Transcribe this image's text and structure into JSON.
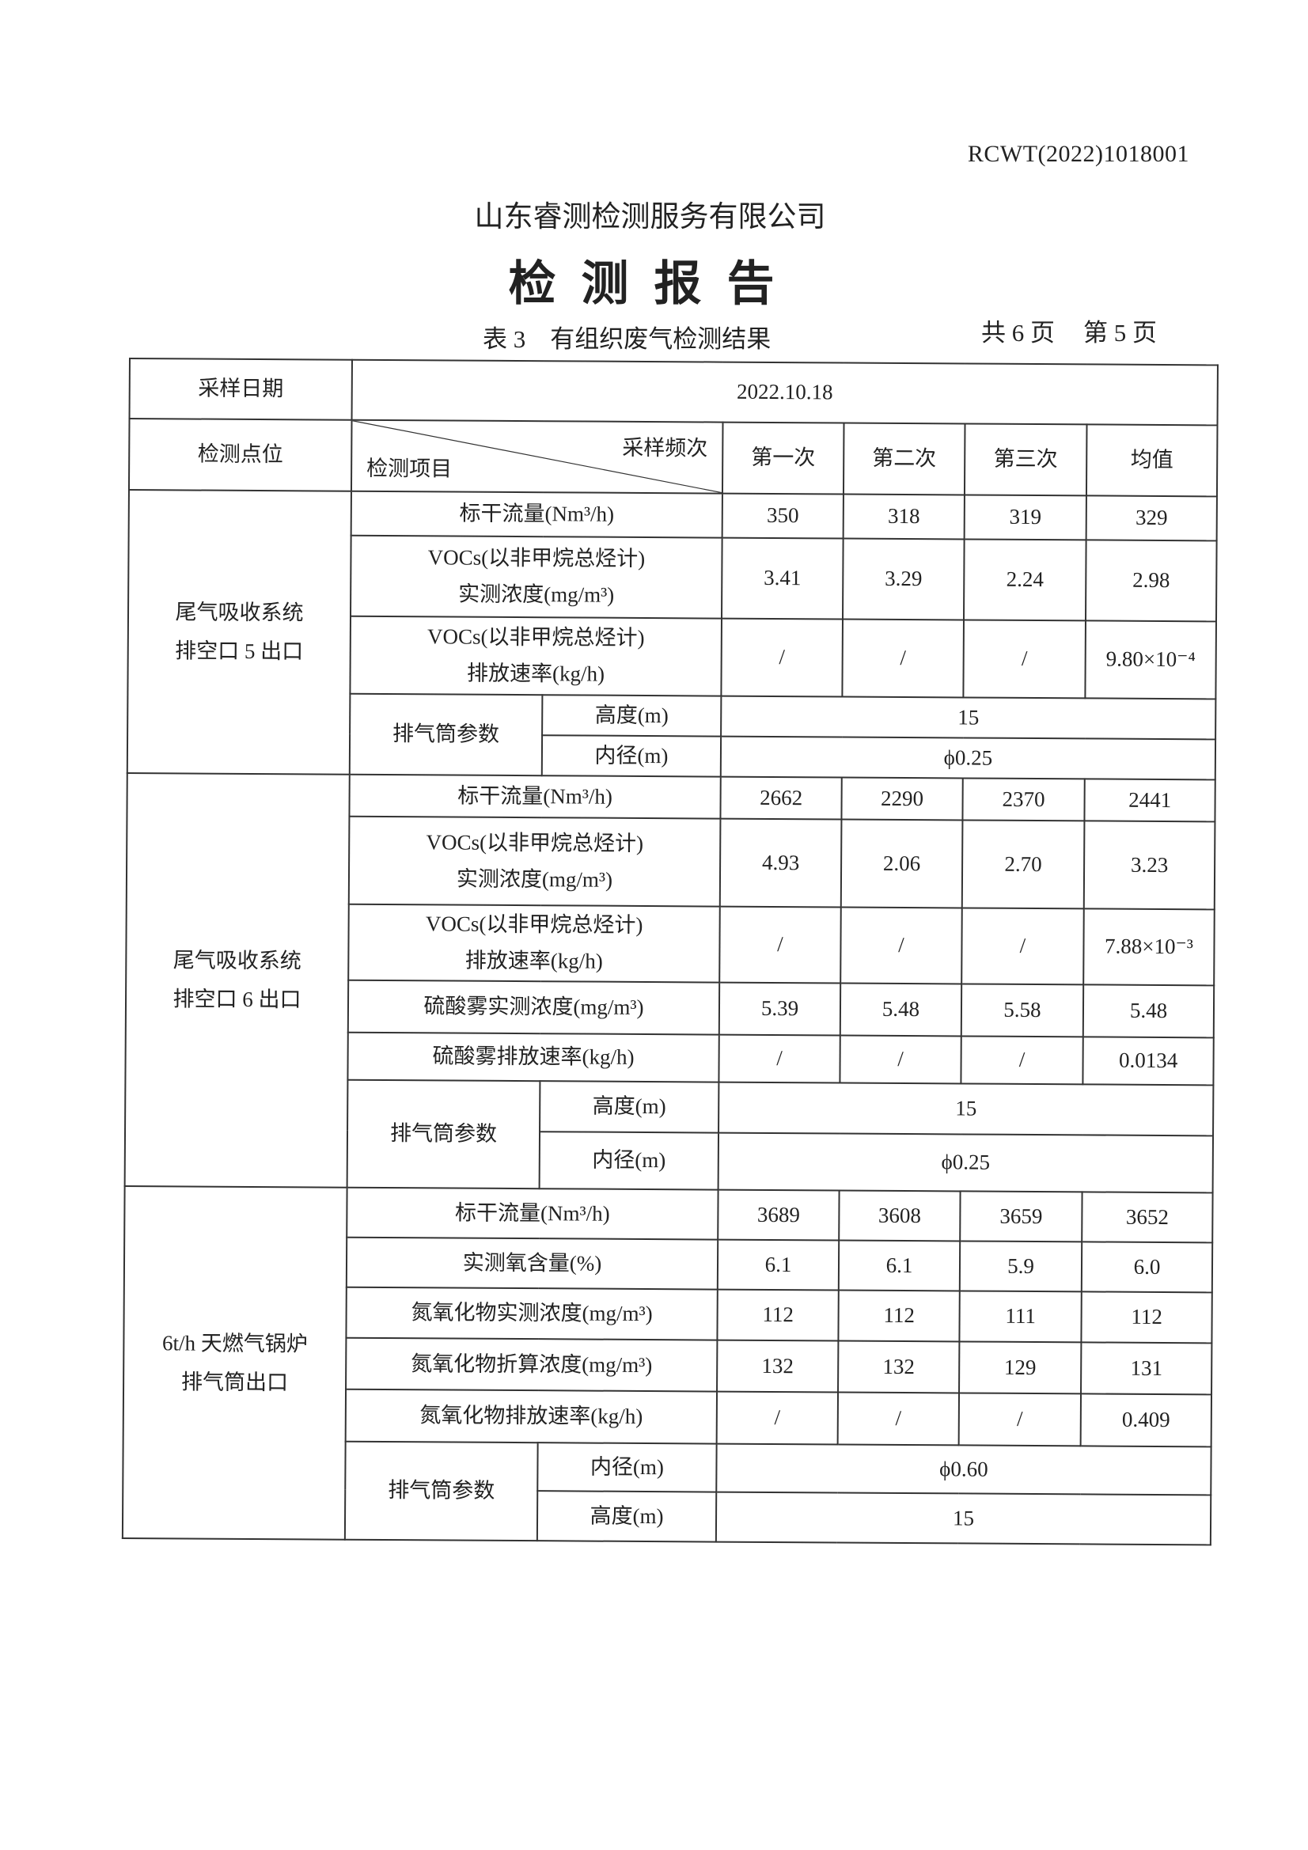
{
  "report_no": "RCWT(2022)1018001",
  "company": "山东睿测检测服务有限公司",
  "title": "检测报告",
  "caption": "表 3　有组织废气检测结果",
  "page_total": "共 6 页",
  "page_current": "第 5 页",
  "table": {
    "date_label": "采样日期",
    "date_value": "2022.10.18",
    "location_label": "检测点位",
    "freq_label": "采样频次",
    "item_label": "检测项目",
    "columns": [
      "第一次",
      "第二次",
      "第三次",
      "均值"
    ],
    "stack_label": "排气筒参数",
    "sections": [
      {
        "location": [
          "尾气吸收系统",
          "排空口 5 出口"
        ],
        "rows": [
          {
            "item": [
              "标干流量(Nm³/h)"
            ],
            "values": [
              "350",
              "318",
              "319",
              "329"
            ]
          },
          {
            "item": [
              "VOCs(以非甲烷总烃计)",
              "实测浓度(mg/m³)"
            ],
            "values": [
              "3.41",
              "3.29",
              "2.24",
              "2.98"
            ]
          },
          {
            "item": [
              "VOCs(以非甲烷总烃计)",
              "排放速率(kg/h)"
            ],
            "values": [
              "/",
              "/",
              "/",
              "9.80×10⁻⁴"
            ]
          }
        ],
        "stack": [
          {
            "label": "高度(m)",
            "value": "15"
          },
          {
            "label": "内径(m)",
            "value": "ϕ0.25"
          }
        ]
      },
      {
        "location": [
          "尾气吸收系统",
          "排空口 6 出口"
        ],
        "rows": [
          {
            "item": [
              "标干流量(Nm³/h)"
            ],
            "values": [
              "2662",
              "2290",
              "2370",
              "2441"
            ]
          },
          {
            "item": [
              "VOCs(以非甲烷总烃计)",
              "实测浓度(mg/m³)"
            ],
            "values": [
              "4.93",
              "2.06",
              "2.70",
              "3.23"
            ]
          },
          {
            "item": [
              "VOCs(以非甲烷总烃计)",
              "排放速率(kg/h)"
            ],
            "values": [
              "/",
              "/",
              "/",
              "7.88×10⁻³"
            ]
          },
          {
            "item": [
              "硫酸雾实测浓度(mg/m³)"
            ],
            "values": [
              "5.39",
              "5.48",
              "5.58",
              "5.48"
            ]
          },
          {
            "item": [
              "硫酸雾排放速率(kg/h)"
            ],
            "values": [
              "/",
              "/",
              "/",
              "0.0134"
            ]
          }
        ],
        "stack": [
          {
            "label": "高度(m)",
            "value": "15"
          },
          {
            "label": "内径(m)",
            "value": "ϕ0.25"
          }
        ]
      },
      {
        "location": [
          "6t/h 天燃气锅炉",
          "排气筒出口"
        ],
        "rows": [
          {
            "item": [
              "标干流量(Nm³/h)"
            ],
            "values": [
              "3689",
              "3608",
              "3659",
              "3652"
            ]
          },
          {
            "item": [
              "实测氧含量(%)"
            ],
            "values": [
              "6.1",
              "6.1",
              "5.9",
              "6.0"
            ]
          },
          {
            "item": [
              "氮氧化物实测浓度(mg/m³)"
            ],
            "values": [
              "112",
              "112",
              "111",
              "112"
            ]
          },
          {
            "item": [
              "氮氧化物折算浓度(mg/m³)"
            ],
            "values": [
              "132",
              "132",
              "129",
              "131"
            ]
          },
          {
            "item": [
              "氮氧化物排放速率(kg/h)"
            ],
            "values": [
              "/",
              "/",
              "/",
              "0.409"
            ]
          }
        ],
        "stack": [
          {
            "label": "内径(m)",
            "value": "ϕ0.60"
          },
          {
            "label": "高度(m)",
            "value": "15"
          }
        ]
      }
    ]
  }
}
